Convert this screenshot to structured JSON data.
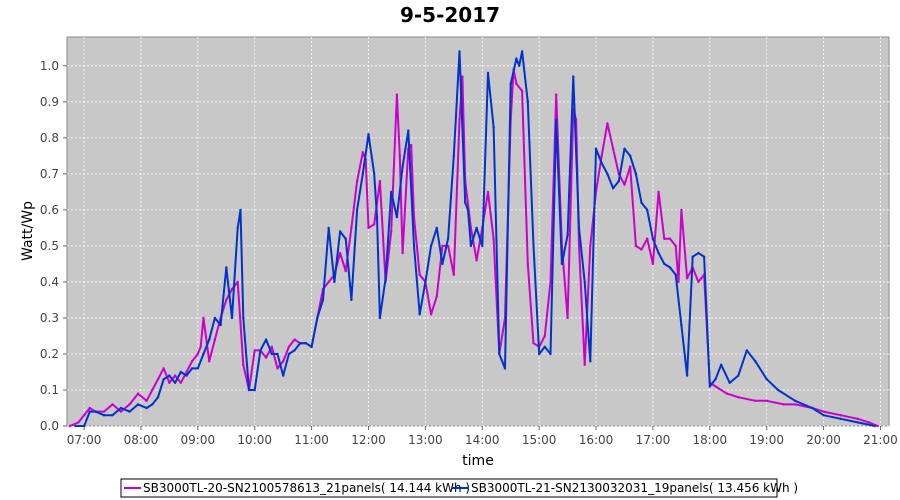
{
  "chart_data": {
    "type": "line",
    "title": "9-5-2017",
    "xlabel": "time",
    "ylabel": "Watt/Wp",
    "x_ticks": [
      "07:00",
      "08:00",
      "09:00",
      "10:00",
      "11:00",
      "12:00",
      "13:00",
      "14:00",
      "15:00",
      "16:00",
      "17:00",
      "18:00",
      "19:00",
      "20:00",
      "21:00"
    ],
    "xlim": [
      6.7,
      21.15
    ],
    "ylim": [
      0,
      1.08
    ],
    "y_ticks": [
      "0.0",
      "0.1",
      "0.2",
      "0.3",
      "0.4",
      "0.5",
      "0.6",
      "0.7",
      "0.8",
      "0.9",
      "1.0"
    ],
    "grid": true,
    "legend_position": "bottom",
    "series": [
      {
        "name": "SB3000TL-20-SN2100578613_21panels( 14.144 kWh )",
        "color": "#cc00cc",
        "x": [
          6.75,
          6.9,
          7.0,
          7.1,
          7.2,
          7.35,
          7.5,
          7.65,
          7.8,
          7.95,
          8.1,
          8.2,
          8.3,
          8.4,
          8.5,
          8.6,
          8.7,
          8.8,
          8.9,
          9.0,
          9.05,
          9.1,
          9.2,
          9.3,
          9.4,
          9.5,
          9.6,
          9.7,
          9.8,
          9.9,
          10.0,
          10.1,
          10.2,
          10.3,
          10.4,
          10.5,
          10.6,
          10.7,
          10.8,
          10.9,
          11.0,
          11.1,
          11.2,
          11.3,
          11.4,
          11.5,
          11.6,
          11.7,
          11.8,
          11.9,
          11.95,
          12.0,
          12.1,
          12.2,
          12.3,
          12.4,
          12.5,
          12.55,
          12.6,
          12.7,
          12.75,
          12.8,
          12.9,
          13.0,
          13.1,
          13.2,
          13.3,
          13.4,
          13.5,
          13.6,
          13.65,
          13.7,
          13.8,
          13.9,
          14.0,
          14.1,
          14.2,
          14.3,
          14.4,
          14.5,
          14.55,
          14.6,
          14.7,
          14.8,
          14.9,
          15.0,
          15.1,
          15.2,
          15.3,
          15.4,
          15.5,
          15.6,
          15.65,
          15.7,
          15.8,
          15.9,
          16.0,
          16.1,
          16.2,
          16.3,
          16.4,
          16.5,
          16.6,
          16.7,
          16.8,
          16.9,
          17.0,
          17.1,
          17.2,
          17.3,
          17.4,
          17.45,
          17.5,
          17.6,
          17.7,
          17.8,
          17.9,
          18.0,
          18.1,
          18.3,
          18.5,
          18.8,
          19.0,
          19.3,
          19.5,
          19.8,
          20.0,
          20.3,
          20.6,
          20.8,
          20.95
        ],
        "y": [
          0.0,
          0.01,
          0.03,
          0.05,
          0.04,
          0.04,
          0.06,
          0.04,
          0.06,
          0.09,
          0.07,
          0.1,
          0.13,
          0.16,
          0.12,
          0.14,
          0.12,
          0.15,
          0.18,
          0.2,
          0.22,
          0.3,
          0.18,
          0.24,
          0.3,
          0.35,
          0.38,
          0.4,
          0.17,
          0.1,
          0.21,
          0.21,
          0.19,
          0.22,
          0.16,
          0.18,
          0.22,
          0.24,
          0.23,
          0.23,
          0.22,
          0.3,
          0.38,
          0.4,
          0.42,
          0.48,
          0.43,
          0.55,
          0.68,
          0.76,
          0.74,
          0.55,
          0.56,
          0.68,
          0.4,
          0.54,
          0.92,
          0.75,
          0.48,
          0.77,
          0.78,
          0.58,
          0.42,
          0.4,
          0.31,
          0.36,
          0.5,
          0.5,
          0.42,
          0.85,
          0.97,
          0.68,
          0.55,
          0.46,
          0.55,
          0.65,
          0.52,
          0.2,
          0.3,
          0.85,
          0.99,
          0.95,
          0.93,
          0.45,
          0.23,
          0.22,
          0.25,
          0.4,
          0.92,
          0.5,
          0.3,
          0.88,
          0.85,
          0.5,
          0.17,
          0.5,
          0.65,
          0.75,
          0.84,
          0.77,
          0.7,
          0.67,
          0.72,
          0.5,
          0.49,
          0.52,
          0.45,
          0.65,
          0.52,
          0.52,
          0.5,
          0.4,
          0.6,
          0.41,
          0.44,
          0.4,
          0.42,
          0.12,
          0.11,
          0.09,
          0.08,
          0.07,
          0.07,
          0.06,
          0.06,
          0.05,
          0.04,
          0.03,
          0.02,
          0.01,
          0.0
        ]
      },
      {
        "name": "SB3000TL-21-SN2130032031_19panels( 13.456 kWh )",
        "color": "#0033cc",
        "x": [
          6.85,
          7.0,
          7.1,
          7.2,
          7.35,
          7.5,
          7.65,
          7.8,
          7.95,
          8.1,
          8.2,
          8.3,
          8.4,
          8.5,
          8.6,
          8.7,
          8.8,
          8.9,
          9.0,
          9.1,
          9.2,
          9.3,
          9.4,
          9.5,
          9.6,
          9.7,
          9.75,
          9.8,
          9.9,
          10.0,
          10.1,
          10.2,
          10.3,
          10.4,
          10.5,
          10.6,
          10.7,
          10.8,
          10.9,
          11.0,
          11.1,
          11.2,
          11.3,
          11.4,
          11.5,
          11.6,
          11.7,
          11.8,
          11.9,
          12.0,
          12.1,
          12.15,
          12.2,
          12.3,
          12.4,
          12.5,
          12.6,
          12.7,
          12.8,
          12.9,
          13.0,
          13.1,
          13.2,
          13.3,
          13.4,
          13.5,
          13.6,
          13.7,
          13.75,
          13.8,
          13.9,
          14.0,
          14.1,
          14.2,
          14.3,
          14.4,
          14.5,
          14.6,
          14.65,
          14.7,
          14.8,
          14.9,
          15.0,
          15.1,
          15.2,
          15.3,
          15.4,
          15.5,
          15.6,
          15.7,
          15.8,
          15.9,
          16.0,
          16.1,
          16.2,
          16.3,
          16.4,
          16.5,
          16.6,
          16.7,
          16.8,
          16.9,
          17.0,
          17.1,
          17.2,
          17.3,
          17.4,
          17.5,
          17.6,
          17.7,
          17.8,
          17.9,
          18.0,
          18.1,
          18.2,
          18.35,
          18.5,
          18.65,
          18.8,
          19.0,
          19.2,
          19.5,
          19.8,
          20.0,
          20.3,
          20.6,
          20.9
        ],
        "y": [
          0.0,
          0.0,
          0.04,
          0.04,
          0.03,
          0.03,
          0.05,
          0.04,
          0.06,
          0.05,
          0.06,
          0.08,
          0.13,
          0.14,
          0.12,
          0.15,
          0.14,
          0.16,
          0.16,
          0.2,
          0.24,
          0.3,
          0.28,
          0.44,
          0.3,
          0.55,
          0.6,
          0.3,
          0.1,
          0.1,
          0.21,
          0.24,
          0.2,
          0.2,
          0.14,
          0.2,
          0.21,
          0.23,
          0.23,
          0.22,
          0.3,
          0.35,
          0.55,
          0.4,
          0.54,
          0.52,
          0.35,
          0.6,
          0.7,
          0.81,
          0.7,
          0.58,
          0.3,
          0.41,
          0.65,
          0.58,
          0.72,
          0.82,
          0.5,
          0.31,
          0.4,
          0.5,
          0.55,
          0.45,
          0.52,
          0.75,
          1.04,
          0.62,
          0.6,
          0.5,
          0.55,
          0.5,
          0.98,
          0.83,
          0.2,
          0.16,
          0.95,
          1.02,
          1.0,
          1.04,
          0.9,
          0.5,
          0.2,
          0.22,
          0.2,
          0.85,
          0.45,
          0.53,
          0.97,
          0.55,
          0.4,
          0.18,
          0.77,
          0.73,
          0.7,
          0.66,
          0.68,
          0.77,
          0.75,
          0.7,
          0.62,
          0.6,
          0.52,
          0.48,
          0.45,
          0.44,
          0.42,
          0.28,
          0.14,
          0.47,
          0.48,
          0.47,
          0.11,
          0.13,
          0.17,
          0.12,
          0.14,
          0.21,
          0.18,
          0.13,
          0.1,
          0.07,
          0.05,
          0.03,
          0.02,
          0.01,
          0.0
        ]
      }
    ]
  }
}
